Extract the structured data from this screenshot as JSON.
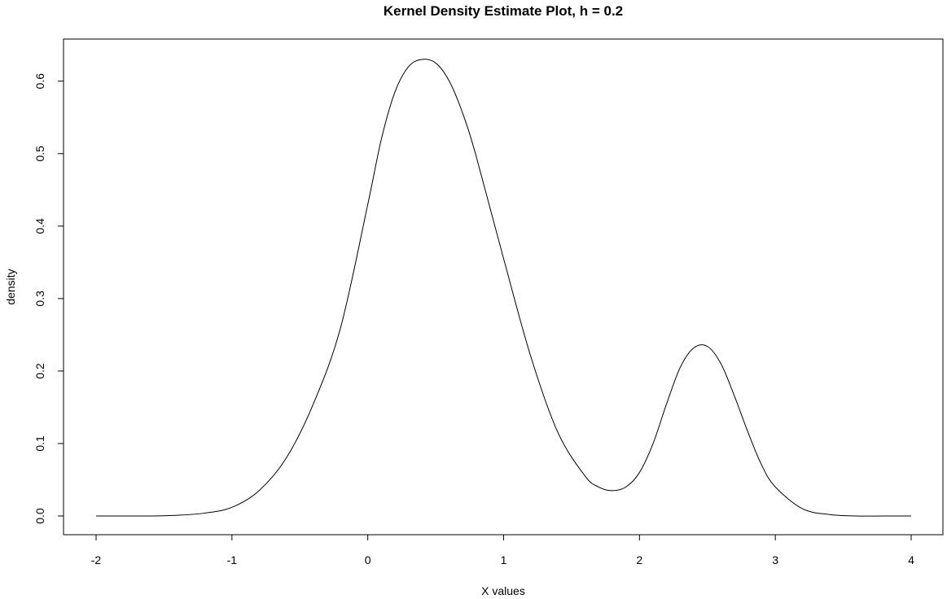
{
  "chart_data": {
    "type": "line",
    "title": "Kernel Density Estimate Plot, h = 0.2",
    "xlabel": "X values",
    "ylabel": "density",
    "xlim": [
      -2,
      4
    ],
    "ylim": [
      0,
      0.63
    ],
    "grid": false,
    "x_ticks": [
      -2,
      -1,
      0,
      1,
      2,
      3,
      4
    ],
    "x_tick_labels": [
      "-2",
      "-1",
      "0",
      "1",
      "2",
      "3",
      "4"
    ],
    "y_ticks": [
      0.0,
      0.1,
      0.2,
      0.3,
      0.4,
      0.5,
      0.6
    ],
    "y_tick_labels": [
      "0.0",
      "0.1",
      "0.2",
      "0.3",
      "0.4",
      "0.5",
      "0.6"
    ],
    "series": [
      {
        "color": "#000000",
        "x": [
          -2.0,
          -1.8,
          -1.6,
          -1.4,
          -1.2,
          -1.0,
          -0.8,
          -0.6,
          -0.4,
          -0.2,
          0.0,
          0.1,
          0.2,
          0.3,
          0.4,
          0.5,
          0.6,
          0.7,
          0.8,
          1.0,
          1.2,
          1.4,
          1.6,
          1.7,
          1.8,
          1.9,
          2.0,
          2.1,
          2.2,
          2.3,
          2.4,
          2.5,
          2.6,
          2.7,
          2.8,
          2.9,
          3.0,
          3.2,
          3.4,
          3.6,
          3.8,
          4.0
        ],
        "y": [
          0.0,
          0.0,
          0.0,
          0.001,
          0.004,
          0.012,
          0.035,
          0.08,
          0.155,
          0.26,
          0.43,
          0.52,
          0.585,
          0.62,
          0.63,
          0.625,
          0.6,
          0.555,
          0.495,
          0.355,
          0.22,
          0.115,
          0.055,
          0.04,
          0.035,
          0.04,
          0.06,
          0.1,
          0.155,
          0.205,
          0.232,
          0.234,
          0.21,
          0.165,
          0.115,
          0.07,
          0.04,
          0.01,
          0.002,
          0.0,
          0.0,
          0.0
        ]
      }
    ]
  }
}
